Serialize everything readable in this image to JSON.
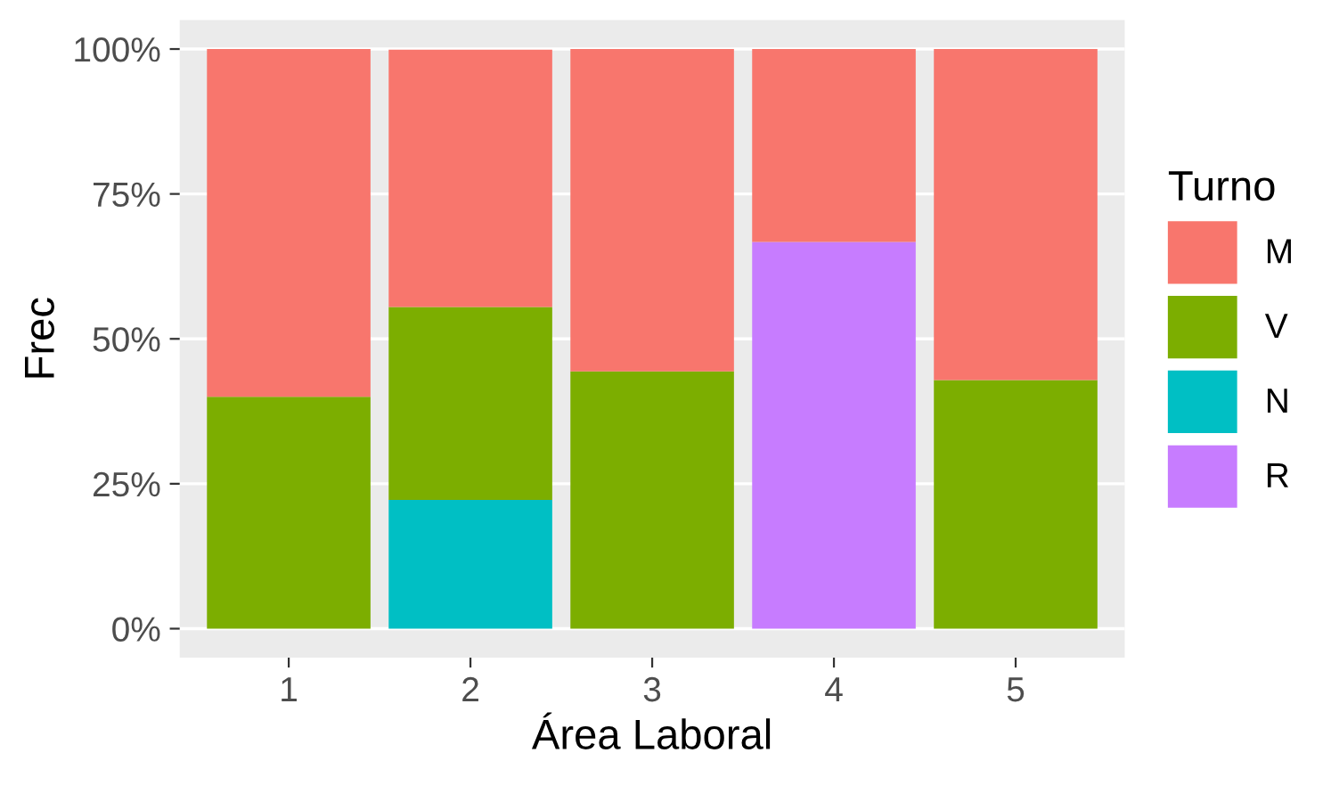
{
  "chart_data": {
    "type": "bar",
    "stacked": true,
    "xlabel": "Área Laboral",
    "ylabel": "Frec",
    "legend_title": "Turno",
    "legend": "right",
    "grid": "y",
    "categories": [
      "1",
      "2",
      "3",
      "4",
      "5"
    ],
    "ylim": [
      -5,
      105
    ],
    "yticks": [
      {
        "value": 0,
        "label": "0%"
      },
      {
        "value": 25,
        "label": "25%"
      },
      {
        "value": 50,
        "label": "50%"
      },
      {
        "value": 75,
        "label": "75%"
      },
      {
        "value": 100,
        "label": "100%"
      }
    ],
    "series": [
      {
        "name": "R",
        "color": "#c77cff",
        "values": [
          null,
          null,
          null,
          66.7,
          null
        ]
      },
      {
        "name": "N",
        "color": "#00bfc4",
        "values": [
          null,
          22.2,
          null,
          null,
          null
        ]
      },
      {
        "name": "V",
        "color": "#7cae00",
        "values": [
          40,
          33.3,
          44.4,
          null,
          42.9
        ]
      },
      {
        "name": "M",
        "color": "#f8766d",
        "values": [
          60,
          44.4,
          55.6,
          33.3,
          57.1
        ]
      }
    ]
  }
}
